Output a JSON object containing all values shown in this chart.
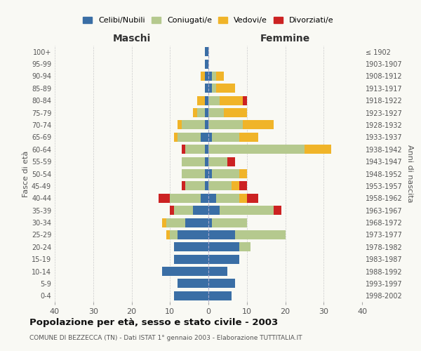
{
  "age_groups": [
    "100+",
    "95-99",
    "90-94",
    "85-89",
    "80-84",
    "75-79",
    "70-74",
    "65-69",
    "60-64",
    "55-59",
    "50-54",
    "45-49",
    "40-44",
    "35-39",
    "30-34",
    "25-29",
    "20-24",
    "15-19",
    "10-14",
    "5-9",
    "0-4"
  ],
  "birth_years": [
    "≤ 1902",
    "1903-1907",
    "1908-1912",
    "1913-1917",
    "1918-1922",
    "1923-1927",
    "1928-1932",
    "1933-1937",
    "1938-1942",
    "1943-1947",
    "1948-1952",
    "1953-1957",
    "1958-1962",
    "1963-1967",
    "1968-1972",
    "1973-1977",
    "1978-1982",
    "1983-1987",
    "1988-1992",
    "1993-1997",
    "1998-2002"
  ],
  "males": {
    "celibi": [
      1,
      1,
      1,
      1,
      1,
      1,
      1,
      2,
      1,
      1,
      1,
      1,
      2,
      4,
      6,
      8,
      9,
      9,
      12,
      8,
      9
    ],
    "coniugati": [
      0,
      0,
      0,
      0,
      0,
      2,
      6,
      6,
      5,
      6,
      6,
      5,
      8,
      5,
      5,
      2,
      0,
      0,
      0,
      0,
      0
    ],
    "vedovi": [
      0,
      0,
      1,
      0,
      2,
      1,
      1,
      1,
      0,
      0,
      0,
      0,
      0,
      0,
      1,
      1,
      0,
      0,
      0,
      0,
      0
    ],
    "divorziati": [
      0,
      0,
      0,
      0,
      0,
      0,
      0,
      0,
      1,
      0,
      0,
      1,
      3,
      1,
      0,
      0,
      0,
      0,
      0,
      0,
      0
    ]
  },
  "females": {
    "nubili": [
      0,
      0,
      1,
      1,
      0,
      0,
      0,
      1,
      0,
      0,
      1,
      0,
      2,
      3,
      1,
      7,
      8,
      8,
      5,
      7,
      6
    ],
    "coniugate": [
      0,
      0,
      1,
      1,
      3,
      4,
      9,
      7,
      25,
      5,
      7,
      6,
      6,
      14,
      9,
      13,
      3,
      0,
      0,
      0,
      0
    ],
    "vedove": [
      0,
      0,
      2,
      5,
      6,
      6,
      8,
      5,
      7,
      0,
      2,
      2,
      2,
      0,
      0,
      0,
      0,
      0,
      0,
      0,
      0
    ],
    "divorziate": [
      0,
      0,
      0,
      0,
      1,
      0,
      0,
      0,
      0,
      2,
      0,
      2,
      3,
      2,
      0,
      0,
      0,
      0,
      0,
      0,
      0
    ]
  },
  "colors": {
    "celibi_nubili": "#3a6ea5",
    "coniugati": "#b5c98e",
    "vedovi": "#f0b429",
    "divorziati": "#cc2222"
  },
  "xlim": 40,
  "title": "Popolazione per età, sesso e stato civile - 2003",
  "subtitle": "COMUNE DI BEZZECCA (TN) - Dati ISTAT 1° gennaio 2003 - Elaborazione TUTTITALIA.IT",
  "ylabel_left": "Fasce di età",
  "ylabel_right": "Anni di nascita",
  "xlabel_left": "Maschi",
  "xlabel_right": "Femmine",
  "legend_labels": [
    "Celibi/Nubili",
    "Coniugati/e",
    "Vedovi/e",
    "Divorziati/e"
  ],
  "bg_color": "#f9f9f4",
  "grid_color": "#cccccc"
}
